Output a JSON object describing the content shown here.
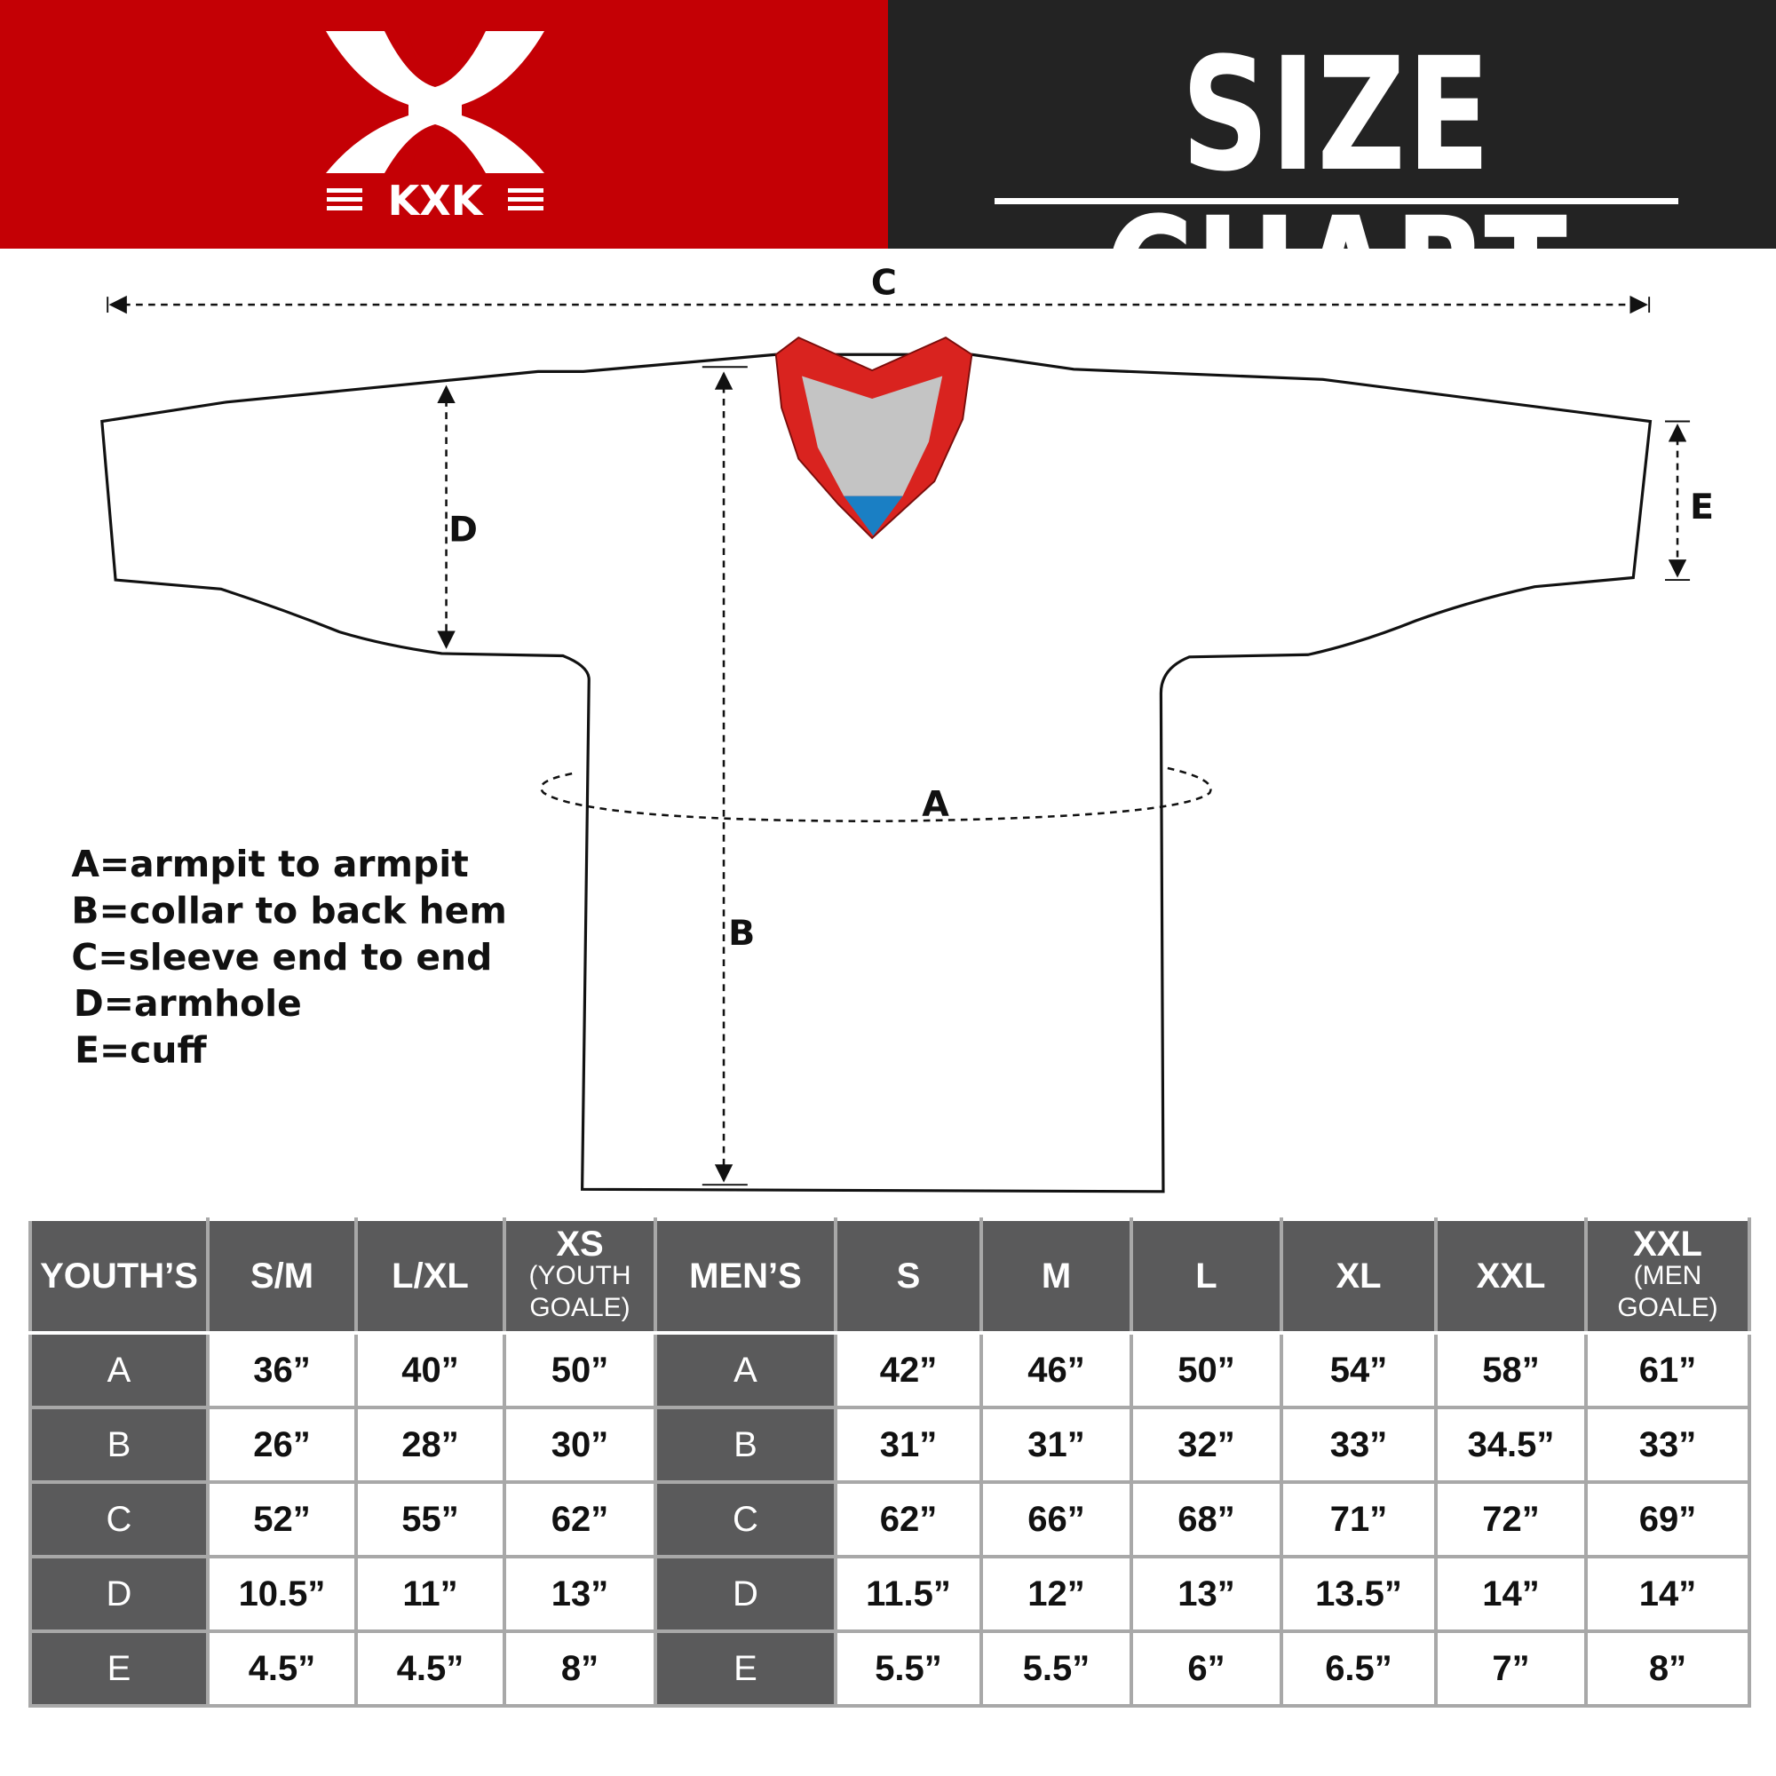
{
  "header": {
    "brand": "KXK",
    "title": "SIZE CHART",
    "colors": {
      "brand_red": "#c40005",
      "dark": "#232323",
      "table_header": "#5a5a5b",
      "collar_red": "#d9231f",
      "collar_grey": "#c4c4c4",
      "collar_blue": "#1a7fc4"
    }
  },
  "diagram": {
    "labels": {
      "a": "A",
      "b": "B",
      "c": "C",
      "d": "D",
      "e": "E"
    },
    "legend": [
      "A=armpit to armpit",
      "B=collar to back hem",
      "C=sleeve end to end",
      "D=armhole",
      "E=cuff"
    ]
  },
  "table": {
    "headers": [
      {
        "main": "YOUTH’S",
        "sub": ""
      },
      {
        "main": "S/M",
        "sub": ""
      },
      {
        "main": "L/XL",
        "sub": ""
      },
      {
        "main": "XS",
        "sub": "(YOUTH GOALE)"
      },
      {
        "main": "MEN’S",
        "sub": ""
      },
      {
        "main": "S",
        "sub": ""
      },
      {
        "main": "M",
        "sub": ""
      },
      {
        "main": "L",
        "sub": ""
      },
      {
        "main": "XL",
        "sub": ""
      },
      {
        "main": "XXL",
        "sub": ""
      },
      {
        "main": "XXL",
        "sub": "(MEN GOALE)"
      }
    ],
    "rows": [
      [
        "A",
        "36”",
        "40”",
        "50”",
        "A",
        "42”",
        "46”",
        "50”",
        "54”",
        "58”",
        "61”"
      ],
      [
        "B",
        "26”",
        "28”",
        "30”",
        "B",
        "31”",
        "31”",
        "32”",
        "33”",
        "34.5”",
        "33”"
      ],
      [
        "C",
        "52”",
        "55”",
        "62”",
        "C",
        "62”",
        "66”",
        "68”",
        "71”",
        "72”",
        "69”"
      ],
      [
        "D",
        "10.5”",
        "11”",
        "13”",
        "D",
        "11.5”",
        "12”",
        "13”",
        "13.5”",
        "14”",
        "14”"
      ],
      [
        "E",
        "4.5”",
        "4.5”",
        "8”",
        "E",
        "5.5”",
        "5.5”",
        "6”",
        "6.5”",
        "7”",
        "8”"
      ]
    ]
  }
}
